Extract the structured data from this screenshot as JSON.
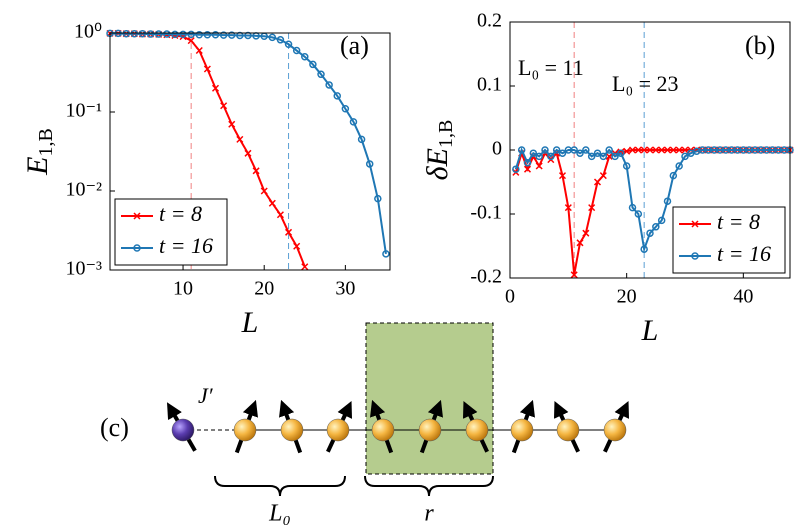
{
  "chart_data": [
    {
      "type": "line",
      "ylog": true,
      "annotation": "(a)",
      "ylabel": "E",
      "ylabel_sub": "1,B",
      "xlabel": "L",
      "xlim": [
        1,
        35.5
      ],
      "xticks": [
        10,
        20,
        30
      ],
      "ylim": [
        0.001,
        1
      ],
      "yticks": [
        {
          "value": 0.001,
          "label": "10⁻³"
        },
        {
          "value": 0.01,
          "label": "10⁻²"
        },
        {
          "value": 0.1,
          "label": "10⁻¹"
        },
        {
          "value": 1,
          "label": "10⁰"
        }
      ],
      "vlines": [
        11,
        23
      ],
      "vline_colors": [
        "#f08080",
        "#5a9fd4"
      ],
      "legend": "lower left",
      "series": [
        {
          "name": "t = 8",
          "color": "#ff0000",
          "marker": "x",
          "x": [
            1,
            2,
            3,
            4,
            5,
            6,
            7,
            8,
            9,
            10,
            11,
            12,
            13,
            14,
            15,
            16,
            17,
            18,
            19,
            20,
            21,
            22,
            23,
            24,
            25
          ],
          "values": [
            0.99,
            0.99,
            0.98,
            0.98,
            0.97,
            0.97,
            0.96,
            0.95,
            0.93,
            0.9,
            0.8,
            0.6,
            0.35,
            0.2,
            0.12,
            0.07,
            0.045,
            0.03,
            0.018,
            0.01,
            0.007,
            0.005,
            0.003,
            0.002,
            0.0011
          ]
        },
        {
          "name": "t = 16",
          "color": "#1f77b4",
          "marker": "o",
          "x": [
            1,
            2,
            3,
            4,
            5,
            6,
            7,
            8,
            9,
            10,
            11,
            12,
            13,
            14,
            15,
            16,
            17,
            18,
            19,
            20,
            21,
            22,
            23,
            24,
            25,
            26,
            27,
            28,
            29,
            30,
            31,
            32,
            33,
            34,
            35
          ],
          "values": [
            0.99,
            0.99,
            0.98,
            0.98,
            0.98,
            0.97,
            0.97,
            0.97,
            0.96,
            0.96,
            0.96,
            0.95,
            0.95,
            0.95,
            0.94,
            0.94,
            0.93,
            0.93,
            0.92,
            0.91,
            0.88,
            0.82,
            0.72,
            0.6,
            0.5,
            0.4,
            0.3,
            0.22,
            0.16,
            0.11,
            0.075,
            0.045,
            0.022,
            0.008,
            0.0016
          ]
        }
      ]
    },
    {
      "type": "line",
      "ylog": false,
      "annotation": "(b)",
      "ylabel": "δE",
      "ylabel_sub": "1,B",
      "xlabel": "L",
      "xlim": [
        0,
        48
      ],
      "xticks": [
        0,
        20,
        40
      ],
      "ylim": [
        -0.2,
        0.2
      ],
      "yticks": [
        -0.2,
        -0.1,
        0,
        0.1,
        0.2
      ],
      "vlines": [
        11,
        23
      ],
      "vline_colors": [
        "#f08080",
        "#5a9fd4"
      ],
      "vline_labels": [
        "L₀ = 11",
        "L₀ = 23"
      ],
      "legend": "lower right",
      "series": [
        {
          "name": "t = 8",
          "color": "#ff0000",
          "marker": "x",
          "x": [
            1,
            2,
            3,
            4,
            5,
            6,
            7,
            8,
            9,
            10,
            11,
            12,
            13,
            14,
            15,
            16,
            17,
            18,
            19,
            20,
            21,
            22,
            23,
            24,
            25,
            26,
            27,
            28,
            29,
            30,
            31,
            32,
            33,
            34,
            35,
            36,
            37,
            38,
            39,
            40,
            41,
            42,
            43,
            44,
            45,
            46,
            47,
            48
          ],
          "values": [
            -0.035,
            -0.005,
            -0.03,
            -0.01,
            -0.025,
            -0.005,
            -0.015,
            -0.005,
            -0.04,
            -0.09,
            -0.195,
            -0.145,
            -0.13,
            -0.09,
            -0.05,
            -0.04,
            -0.01,
            -0.005,
            -0.003,
            -0.002,
            0,
            0,
            0,
            0,
            0,
            0,
            0,
            0,
            0,
            0,
            0,
            0,
            0,
            0,
            0,
            0,
            0,
            0,
            0,
            0,
            0,
            0,
            0,
            0,
            0,
            0,
            0,
            0
          ]
        },
        {
          "name": "t = 16",
          "color": "#1f77b4",
          "marker": "o",
          "x": [
            1,
            2,
            3,
            4,
            5,
            6,
            7,
            8,
            9,
            10,
            11,
            12,
            13,
            14,
            15,
            16,
            17,
            18,
            19,
            20,
            21,
            22,
            23,
            24,
            25,
            26,
            27,
            28,
            29,
            30,
            31,
            32,
            33,
            34,
            35,
            36,
            37,
            38,
            39,
            40,
            41,
            42,
            43,
            44,
            45,
            46,
            47,
            48
          ],
          "values": [
            -0.03,
            0,
            -0.02,
            -0.005,
            -0.01,
            0,
            -0.01,
            0,
            -0.005,
            0,
            0,
            -0.005,
            0,
            -0.01,
            -0.005,
            -0.01,
            0,
            -0.01,
            -0.005,
            -0.025,
            -0.09,
            -0.1,
            -0.155,
            -0.13,
            -0.12,
            -0.11,
            -0.08,
            -0.04,
            -0.025,
            -0.01,
            -0.005,
            -0.002,
            0,
            0,
            0,
            0,
            0,
            0,
            0,
            0,
            0,
            0,
            0,
            0,
            0,
            0,
            0,
            0
          ]
        }
      ]
    }
  ],
  "diagram": {
    "label": "(c)",
    "coupling": "J′",
    "brackets": [
      "L₀",
      "r"
    ]
  }
}
